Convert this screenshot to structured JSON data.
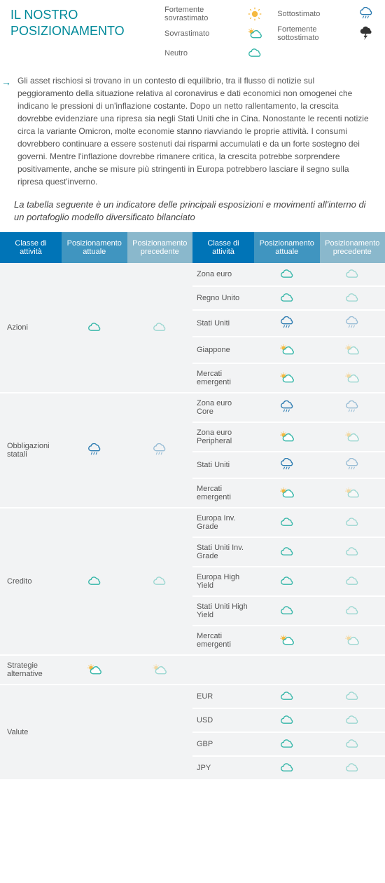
{
  "title": "IL NOSTRO POSIZIONAMENTO",
  "legend": {
    "strongly_over": "Fortemente sovrastimato",
    "over": "Sovrastimato",
    "neutral": "Neutro",
    "under": "Sottostimato",
    "strongly_under": "Fortemente sottostimato"
  },
  "body": "Gli asset rischiosi si trovano in un contesto di equilibrio, tra il flusso di notizie sul peggioramento della situazione relativa al coronavirus e dati economici non omogenei che indicano le pressioni di un'inflazione costante. Dopo un netto rallentamento, la crescita dovrebbe evidenziare una ripresa sia negli Stati Uniti che in Cina. Nonostante le recenti notizie circa la variante Omicron, molte economie stanno riavviando le proprie attività. I consumi dovrebbero continuare a essere sostenuti dai risparmi accumulati e da un forte sostegno dei governi. Mentre l'inflazione dovrebbe rimanere critica, la crescita potrebbe sorprendere positivamente, anche se misure più stringenti in Europa potrebbero lasciare il segno sulla ripresa quest'inverno.",
  "subhead": "La tabella seguente è un indicatore delle principali esposizioni e movimenti all'interno di un portafoglio modello diversificato bilanciato",
  "columns": {
    "c1": "Classe di attività",
    "c2": "Posizionamento attuale",
    "c3": "Posizionamento precedente",
    "c4": "Classe di attività",
    "c5": "Posizionamento attuale",
    "c6": "Posizionamento precedente"
  },
  "groups": [
    {
      "label": "Azioni",
      "groupIcon": "neutral",
      "rows": [
        {
          "label": "Zona euro",
          "curr": "neutral",
          "prev": "neutral"
        },
        {
          "label": "Regno Unito",
          "curr": "neutral",
          "prev": "neutral"
        },
        {
          "label": "Stati Uniti",
          "curr": "under",
          "prev": "under"
        },
        {
          "label": "Giappone",
          "curr": "over",
          "prev": "over"
        },
        {
          "label": "Mercati emergenti",
          "curr": "over",
          "prev": "over"
        }
      ]
    },
    {
      "label": "Obbligazioni statali",
      "groupIcon": "under",
      "rows": [
        {
          "label": "Zona euro Core",
          "curr": "under",
          "prev": "under"
        },
        {
          "label": "Zona euro Peripheral",
          "curr": "over",
          "prev": "over"
        },
        {
          "label": "Stati Uniti",
          "curr": "under",
          "prev": "under"
        },
        {
          "label": "Mercati emergenti",
          "curr": "over",
          "prev": "over"
        }
      ]
    },
    {
      "label": "Credito",
      "groupIcon": "neutral",
      "rows": [
        {
          "label": "Europa Inv. Grade",
          "curr": "neutral",
          "prev": "neutral"
        },
        {
          "label": "Stati Uniti Inv. Grade",
          "curr": "neutral",
          "prev": "neutral"
        },
        {
          "label": "Europa High Yield",
          "curr": "neutral",
          "prev": "neutral"
        },
        {
          "label": "Stati Uniti High Yield",
          "curr": "neutral",
          "prev": "neutral"
        },
        {
          "label": "Mercati emergenti",
          "curr": "over",
          "prev": "over"
        }
      ]
    },
    {
      "label": "Strategie alternative",
      "groupIcon": "over",
      "rows": []
    },
    {
      "label": "Valute",
      "groupIcon": null,
      "rows": [
        {
          "label": "EUR",
          "curr": "neutral",
          "prev": "neutral"
        },
        {
          "label": "USD",
          "curr": "neutral",
          "prev": "neutral"
        },
        {
          "label": "GBP",
          "curr": "neutral",
          "prev": "neutral"
        },
        {
          "label": "JPY",
          "curr": "neutral",
          "prev": "neutral"
        }
      ]
    }
  ],
  "colors": {
    "teal": "#35b6a8",
    "blue": "#2a7ab0",
    "dark": "#333333",
    "sun": "#f5b940"
  }
}
